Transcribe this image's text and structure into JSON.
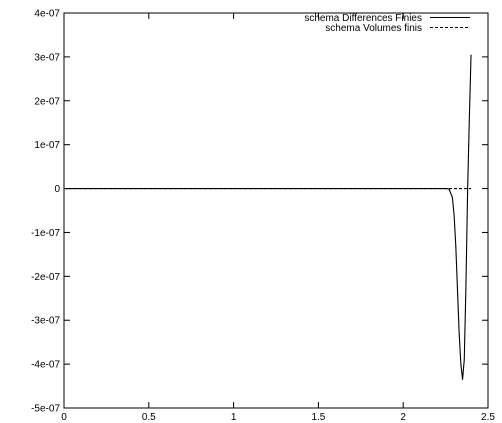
{
  "chart_data": {
    "type": "line",
    "xlim": [
      0,
      2.5
    ],
    "ylim": [
      -5e-07,
      4e-07
    ],
    "x_ticks": [
      0,
      0.5,
      1,
      1.5,
      2,
      2.5
    ],
    "x_tick_labels": [
      "0",
      "0.5",
      "1",
      "1.5",
      "2",
      "2.5"
    ],
    "y_ticks": [
      -5e-07,
      -4e-07,
      -3e-07,
      -2e-07,
      -1e-07,
      0,
      1e-07,
      2e-07,
      3e-07,
      4e-07
    ],
    "y_tick_labels": [
      "-5e-07",
      "-4e-07",
      "-3e-07",
      "-2e-07",
      "-1e-07",
      "0",
      "1e-07",
      "2e-07",
      "3e-07",
      "4e-07"
    ],
    "grid": false,
    "legend_position": "top-right",
    "series": [
      {
        "name": "schema Differences Finies",
        "style": "solid",
        "color": "#000000",
        "x": [
          0,
          0.5,
          1,
          1.5,
          2,
          2.2,
          2.25,
          2.27,
          2.29,
          2.3,
          2.31,
          2.32,
          2.33,
          2.34,
          2.35,
          2.36,
          2.37,
          2.38,
          2.39,
          2.4
        ],
        "y": [
          0,
          0,
          0,
          0,
          0,
          0,
          0,
          -1e-09,
          -2e-08,
          -6e-08,
          -1.3e-07,
          -2.3e-07,
          -3.3e-07,
          -4e-07,
          -4.35e-07,
          -3.9e-07,
          -2.2e-07,
          0,
          1.6e-07,
          3.05e-07
        ]
      },
      {
        "name": "schema Volumes finis",
        "style": "dashed",
        "color": "#000000",
        "x": [
          0,
          2.4
        ],
        "y": [
          0,
          0
        ]
      }
    ]
  }
}
